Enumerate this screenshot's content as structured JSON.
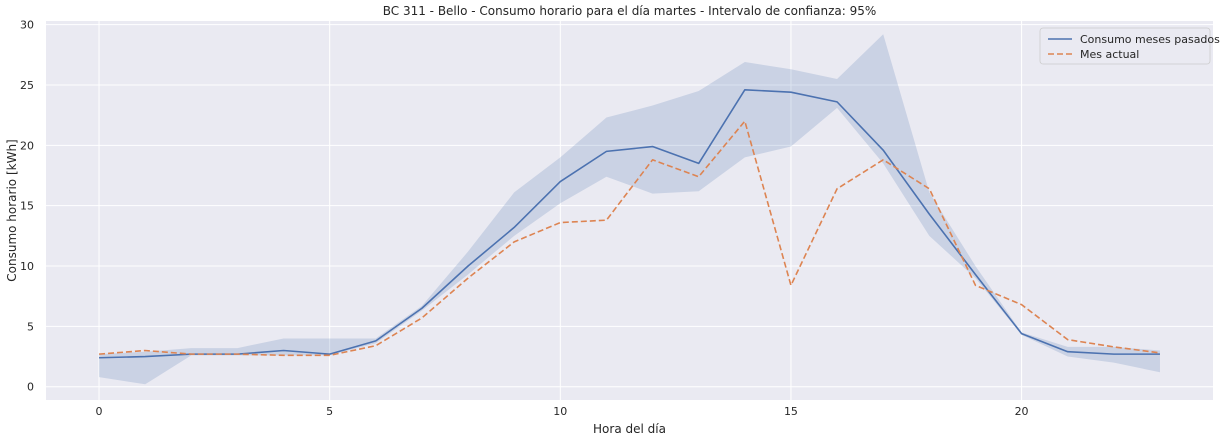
{
  "chart_data": {
    "type": "line",
    "title": "BC 311 - Bello - Consumo horario para el día martes - Intervalo de confianza: 95%",
    "xlabel": "Hora del día",
    "ylabel": "Consumo horario [kWh]",
    "xlim": [
      -1.15,
      24.15
    ],
    "ylim": [
      -1.1,
      30.3
    ],
    "xticks": [
      0,
      5,
      10,
      15,
      20
    ],
    "yticks": [
      0,
      5,
      10,
      15,
      20,
      25,
      30
    ],
    "grid": true,
    "background_color": "#eaeaf2",
    "legend_position": "top-right",
    "x": [
      0,
      1,
      2,
      3,
      4,
      5,
      6,
      7,
      8,
      9,
      10,
      11,
      12,
      13,
      14,
      15,
      16,
      17,
      18,
      19,
      20,
      21,
      22,
      23
    ],
    "series": [
      {
        "name": "Consumo meses pasados",
        "style": "solid",
        "color": "#4c72b0",
        "values": [
          2.4,
          2.5,
          2.7,
          2.7,
          3.0,
          2.7,
          3.8,
          6.5,
          10.0,
          13.2,
          17.0,
          19.5,
          19.9,
          18.5,
          24.6,
          24.4,
          23.6,
          19.6,
          14.3,
          9.3,
          4.4,
          2.9,
          2.7,
          2.7
        ],
        "ci_lower": [
          0.8,
          0.2,
          2.6,
          2.6,
          2.6,
          2.6,
          3.6,
          6.3,
          9.3,
          12.5,
          15.2,
          17.4,
          16.0,
          16.2,
          19.0,
          19.9,
          23.1,
          18.5,
          12.5,
          9.0,
          4.3,
          2.5,
          2.0,
          1.2
        ],
        "ci_upper": [
          2.7,
          2.9,
          3.2,
          3.2,
          4.0,
          4.0,
          4.0,
          6.7,
          11.2,
          16.1,
          19.0,
          22.3,
          23.3,
          24.5,
          26.9,
          26.3,
          25.5,
          29.2,
          16.1,
          10.0,
          4.5,
          3.3,
          3.3,
          3.0
        ]
      },
      {
        "name": "Mes actual",
        "style": "dashed",
        "color": "#dd8452",
        "values": [
          2.7,
          3.0,
          2.7,
          2.7,
          2.6,
          2.6,
          3.4,
          5.7,
          9.0,
          12.0,
          13.6,
          13.8,
          18.8,
          17.4,
          22.0,
          8.4,
          16.4,
          18.8,
          16.4,
          8.4,
          6.8,
          3.9,
          3.3,
          2.8
        ]
      }
    ]
  }
}
